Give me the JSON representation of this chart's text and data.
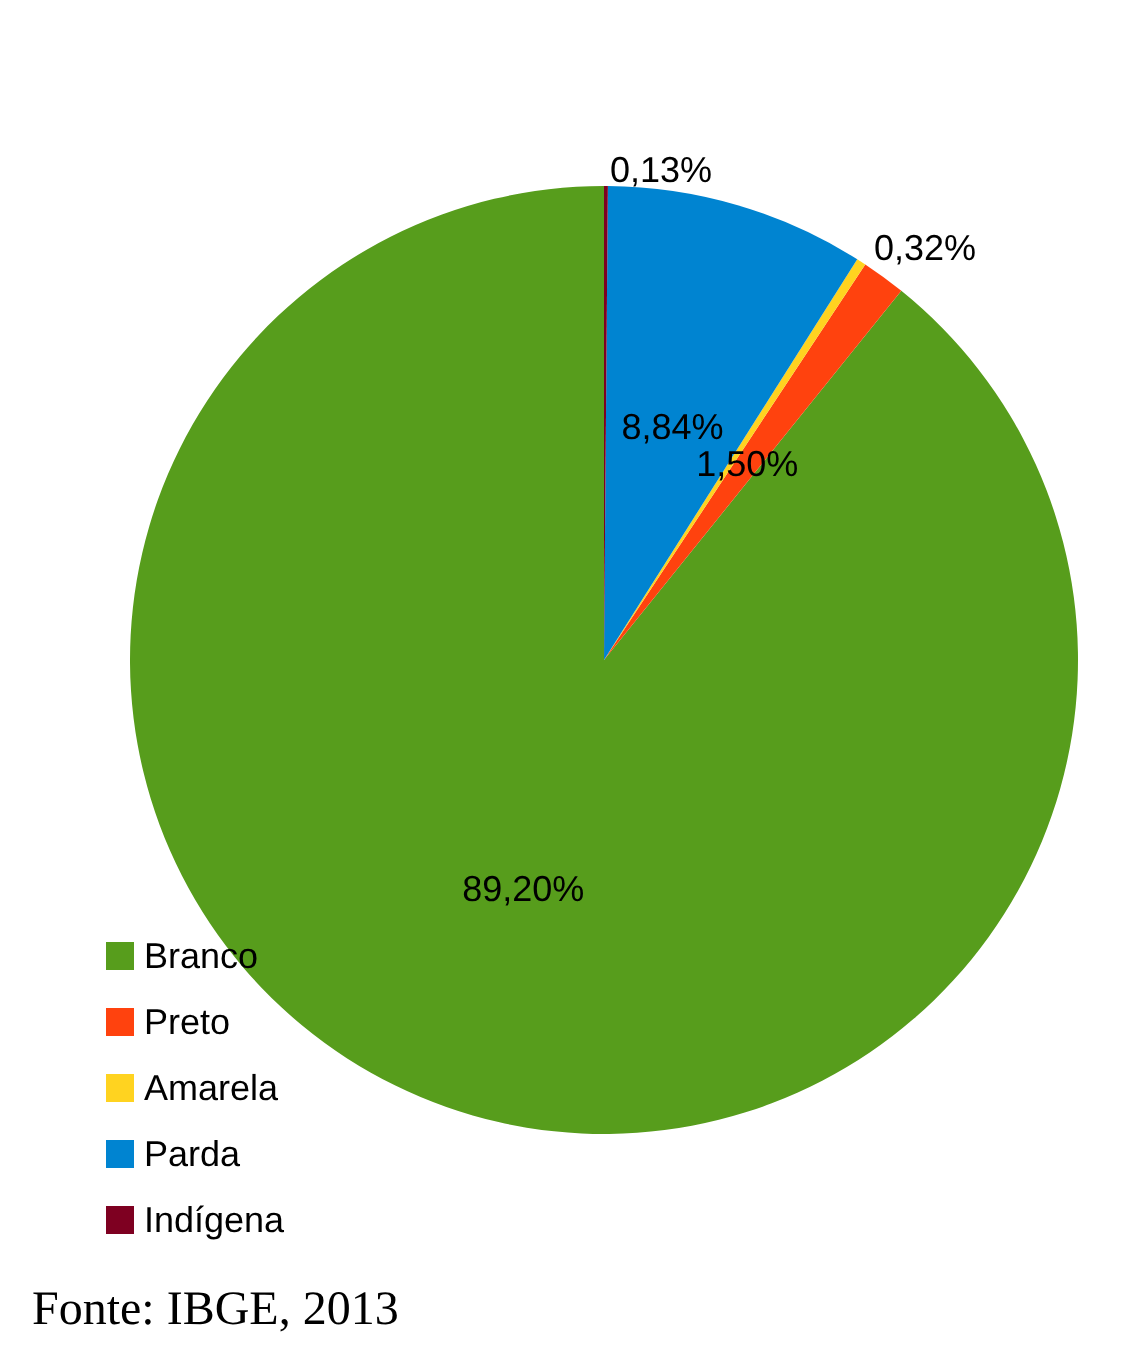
{
  "chart_data": {
    "type": "pie",
    "categories": [
      "Branco",
      "Preto",
      "Amarela",
      "Parda",
      "Indígena"
    ],
    "values": [
      89.2,
      1.5,
      0.32,
      8.84,
      0.13
    ],
    "colors": [
      "#579d1c",
      "#ff420e",
      "#ffd320",
      "#0084d1",
      "#7e0021"
    ],
    "value_labels": [
      "89,20%",
      "1,50%",
      "0,32%",
      "8,84%",
      "0,13%"
    ],
    "legend": "bottom left",
    "annotations": [
      "Fonte: IBGE, 2013"
    ]
  }
}
